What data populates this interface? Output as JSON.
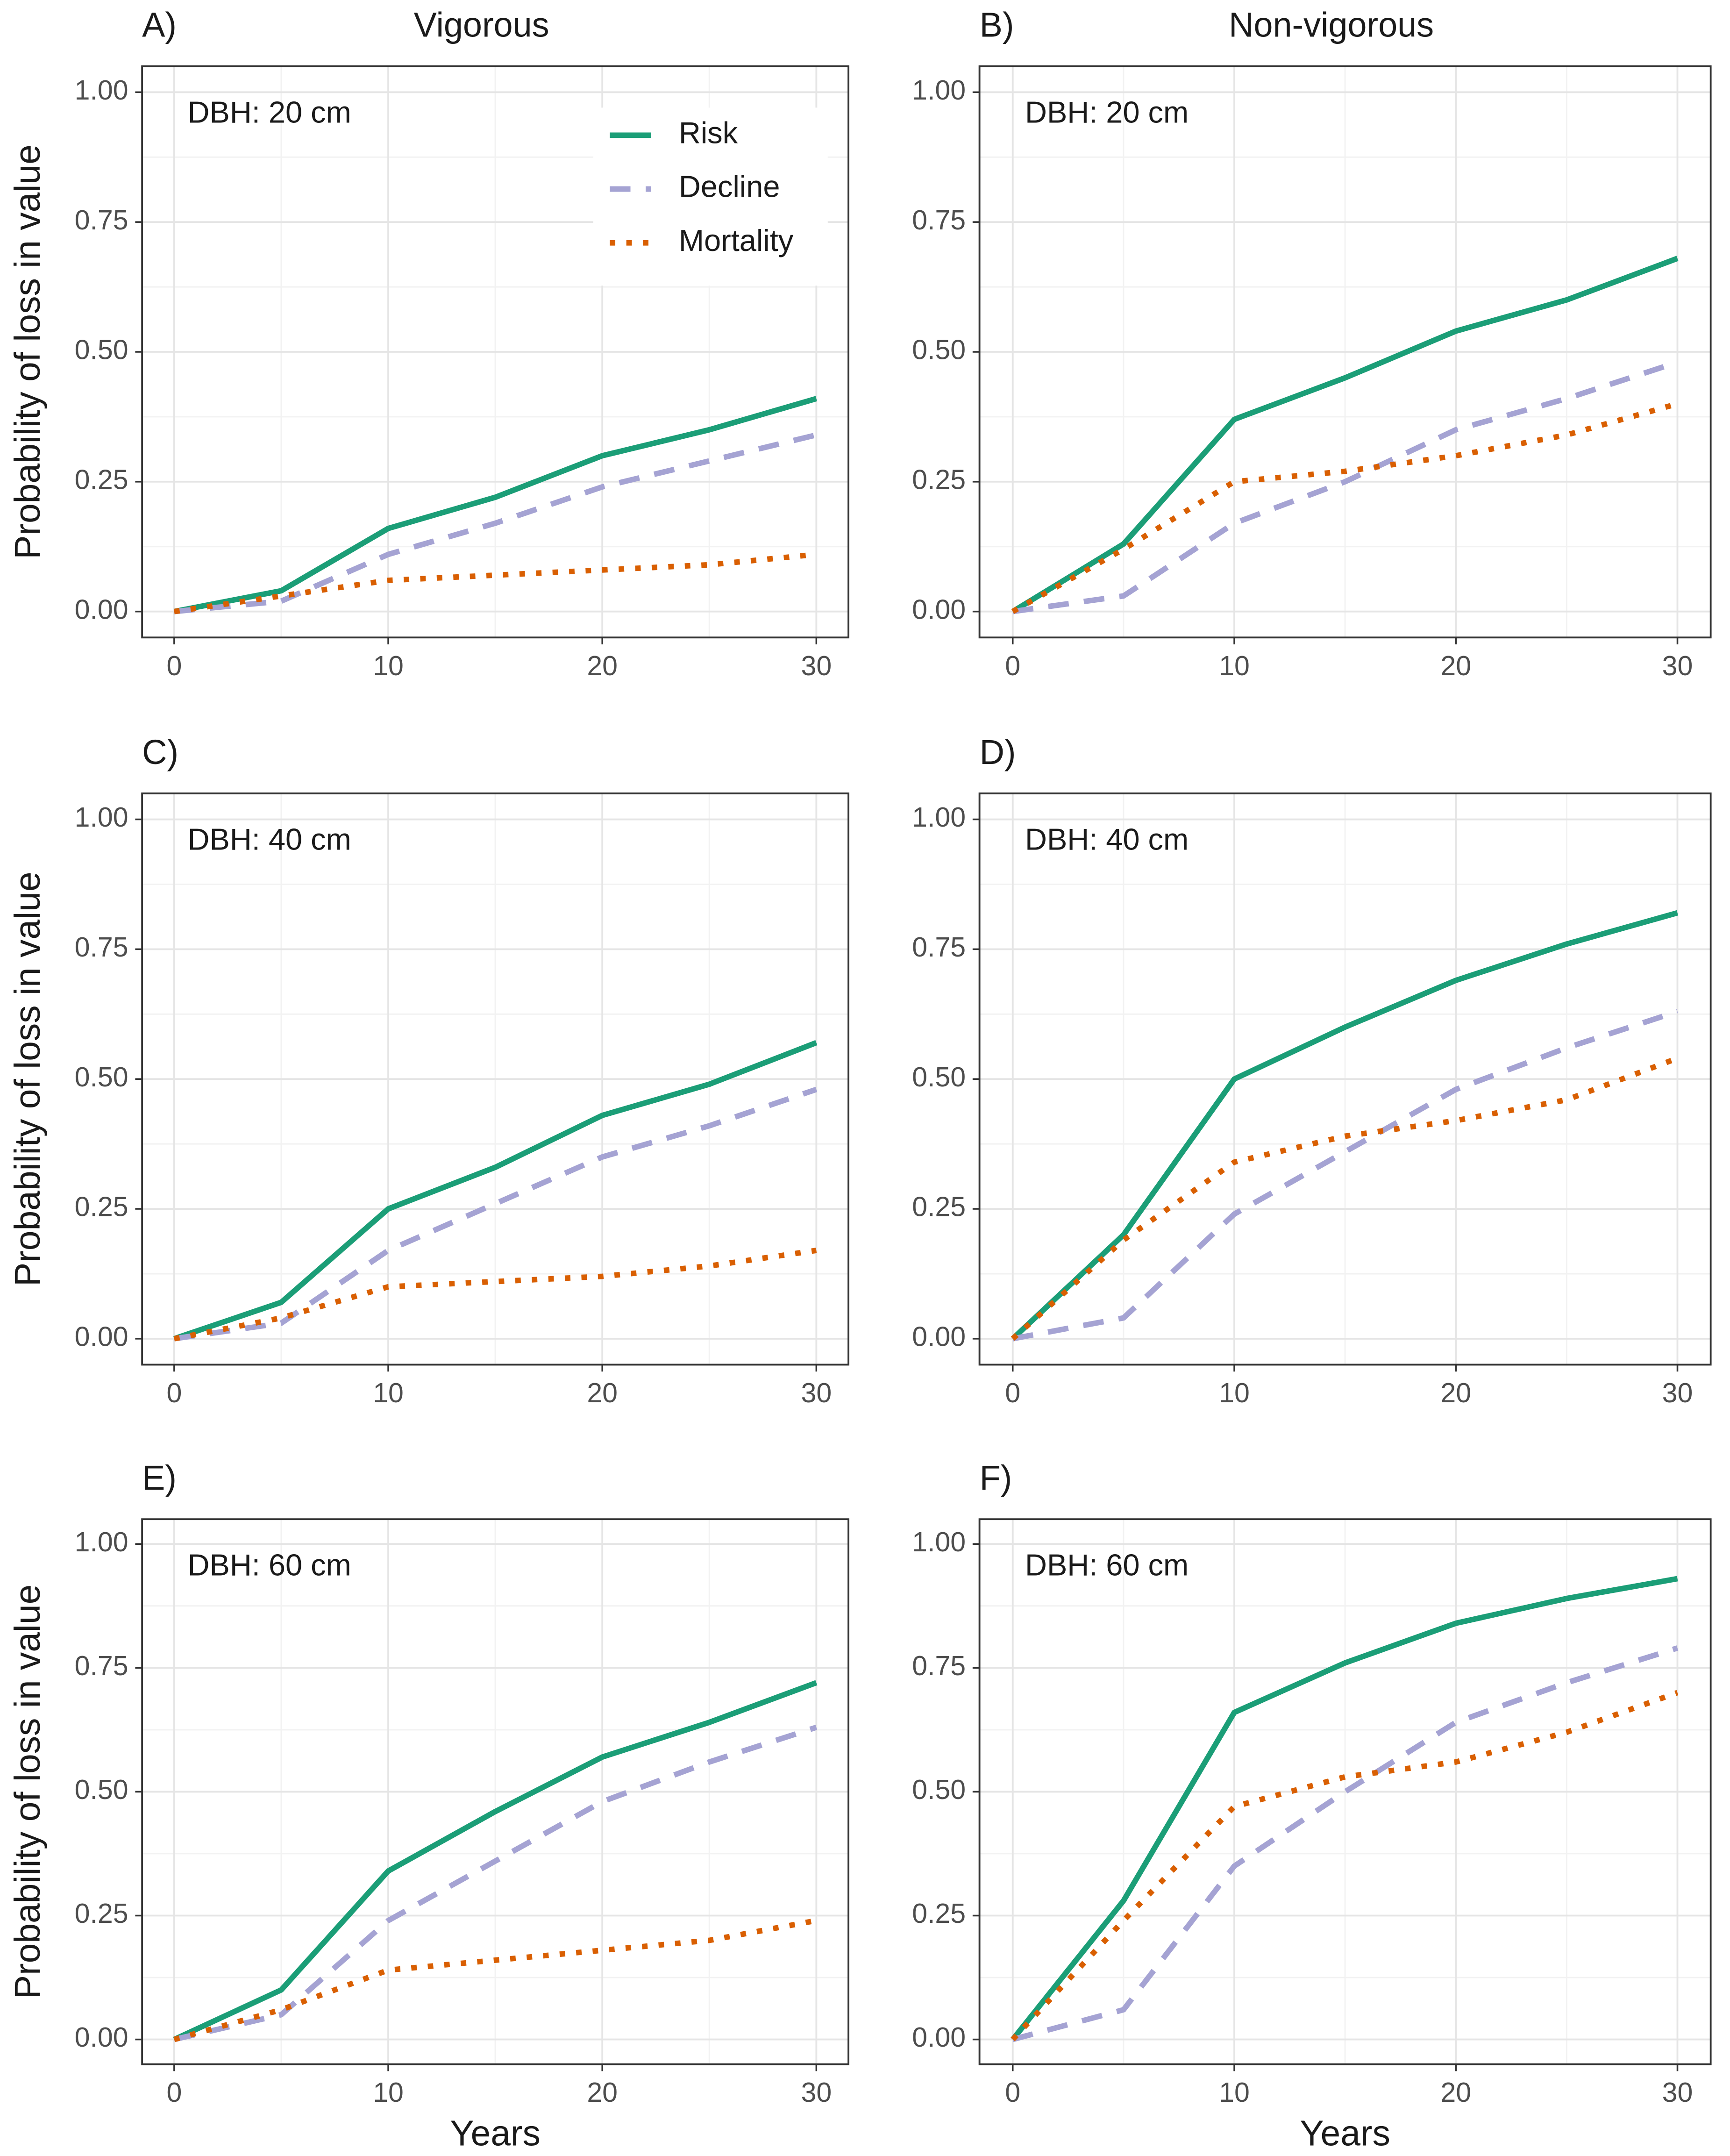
{
  "chart_data": [
    {
      "type": "line",
      "panel_label": "A)",
      "title": "Vigorous",
      "annotation": "DBH: 20 cm",
      "ylabel": "Probability of loss in value",
      "legend": "top-right",
      "x": [
        0,
        5,
        10,
        15,
        20,
        25,
        30
      ],
      "series": [
        {
          "name": "Risk",
          "color": "#1b9e77",
          "style": "solid",
          "values": [
            0,
            0.04,
            0.16,
            0.22,
            0.3,
            0.35,
            0.41
          ]
        },
        {
          "name": "Decline",
          "color": "#a5a3d3",
          "style": "dashed",
          "values": [
            0,
            0.02,
            0.11,
            0.17,
            0.24,
            0.29,
            0.34
          ]
        },
        {
          "name": "Mortality",
          "color": "#d95f02",
          "style": "dotted",
          "values": [
            0,
            0.03,
            0.06,
            0.07,
            0.08,
            0.09,
            0.11
          ]
        }
      ],
      "xlim": [
        -1.5,
        31.5
      ],
      "ylim": [
        -0.05,
        1.05
      ],
      "xticks": [
        0,
        10,
        20,
        30
      ],
      "xminor": [
        5,
        15,
        25
      ],
      "yticks": [
        {
          "value": 0,
          "label": "0.00"
        },
        {
          "value": 0.25,
          "label": "0.25"
        },
        {
          "value": 0.5,
          "label": "0.50"
        },
        {
          "value": 0.75,
          "label": "0.75"
        },
        {
          "value": 1,
          "label": "1.00"
        }
      ],
      "yminor": [
        0.125,
        0.375,
        0.625,
        0.875
      ],
      "grid": true
    },
    {
      "type": "line",
      "panel_label": "B)",
      "title": "Non-vigorous",
      "annotation": "DBH: 20 cm",
      "x": [
        0,
        5,
        10,
        15,
        20,
        25,
        30
      ],
      "series": [
        {
          "color": "#1b9e77",
          "style": "solid",
          "values": [
            0,
            0.13,
            0.37,
            0.45,
            0.54,
            0.6,
            0.68
          ]
        },
        {
          "color": "#a5a3d3",
          "style": "dashed",
          "values": [
            0,
            0.03,
            0.17,
            0.25,
            0.35,
            0.41,
            0.48
          ]
        },
        {
          "color": "#d95f02",
          "style": "dotted",
          "values": [
            0,
            0.12,
            0.25,
            0.27,
            0.3,
            0.34,
            0.4
          ]
        }
      ],
      "xlim": [
        -1.5,
        31.5
      ],
      "ylim": [
        -0.05,
        1.05
      ],
      "xticks": [
        0,
        10,
        20,
        30
      ],
      "xminor": [
        5,
        15,
        25
      ],
      "yticks": [
        {
          "value": 0,
          "label": "0.00"
        },
        {
          "value": 0.25,
          "label": "0.25"
        },
        {
          "value": 0.5,
          "label": "0.50"
        },
        {
          "value": 0.75,
          "label": "0.75"
        },
        {
          "value": 1,
          "label": "1.00"
        }
      ],
      "yminor": [
        0.125,
        0.375,
        0.625,
        0.875
      ],
      "grid": true
    },
    {
      "type": "line",
      "panel_label": "C)",
      "annotation": "DBH: 40 cm",
      "ylabel": "Probability of loss in value",
      "x": [
        0,
        5,
        10,
        15,
        20,
        25,
        30
      ],
      "series": [
        {
          "color": "#1b9e77",
          "style": "solid",
          "values": [
            0,
            0.07,
            0.25,
            0.33,
            0.43,
            0.49,
            0.57
          ]
        },
        {
          "color": "#a5a3d3",
          "style": "dashed",
          "values": [
            0,
            0.03,
            0.17,
            0.26,
            0.35,
            0.41,
            0.48
          ]
        },
        {
          "color": "#d95f02",
          "style": "dotted",
          "values": [
            0,
            0.04,
            0.1,
            0.11,
            0.12,
            0.14,
            0.17
          ]
        }
      ],
      "xlim": [
        -1.5,
        31.5
      ],
      "ylim": [
        -0.05,
        1.05
      ],
      "xticks": [
        0,
        10,
        20,
        30
      ],
      "xminor": [
        5,
        15,
        25
      ],
      "yticks": [
        {
          "value": 0,
          "label": "0.00"
        },
        {
          "value": 0.25,
          "label": "0.25"
        },
        {
          "value": 0.5,
          "label": "0.50"
        },
        {
          "value": 0.75,
          "label": "0.75"
        },
        {
          "value": 1,
          "label": "1.00"
        }
      ],
      "yminor": [
        0.125,
        0.375,
        0.625,
        0.875
      ],
      "grid": true
    },
    {
      "type": "line",
      "panel_label": "D)",
      "annotation": "DBH: 40 cm",
      "x": [
        0,
        5,
        10,
        15,
        20,
        25,
        30
      ],
      "series": [
        {
          "color": "#1b9e77",
          "style": "solid",
          "values": [
            0,
            0.2,
            0.5,
            0.6,
            0.69,
            0.76,
            0.82
          ]
        },
        {
          "color": "#a5a3d3",
          "style": "dashed",
          "values": [
            0,
            0.04,
            0.24,
            0.36,
            0.48,
            0.56,
            0.63
          ]
        },
        {
          "color": "#d95f02",
          "style": "dotted",
          "values": [
            0,
            0.19,
            0.34,
            0.39,
            0.42,
            0.46,
            0.54
          ]
        }
      ],
      "xlim": [
        -1.5,
        31.5
      ],
      "ylim": [
        -0.05,
        1.05
      ],
      "xticks": [
        0,
        10,
        20,
        30
      ],
      "xminor": [
        5,
        15,
        25
      ],
      "yticks": [
        {
          "value": 0,
          "label": "0.00"
        },
        {
          "value": 0.25,
          "label": "0.25"
        },
        {
          "value": 0.5,
          "label": "0.50"
        },
        {
          "value": 0.75,
          "label": "0.75"
        },
        {
          "value": 1,
          "label": "1.00"
        }
      ],
      "yminor": [
        0.125,
        0.375,
        0.625,
        0.875
      ],
      "grid": true
    },
    {
      "type": "line",
      "panel_label": "E)",
      "annotation": "DBH: 60 cm",
      "ylabel": "Probability of loss in value",
      "xlabel": "Years",
      "x": [
        0,
        5,
        10,
        15,
        20,
        25,
        30
      ],
      "series": [
        {
          "color": "#1b9e77",
          "style": "solid",
          "values": [
            0,
            0.1,
            0.34,
            0.46,
            0.57,
            0.64,
            0.72
          ]
        },
        {
          "color": "#a5a3d3",
          "style": "dashed",
          "values": [
            0,
            0.05,
            0.24,
            0.36,
            0.48,
            0.56,
            0.63
          ]
        },
        {
          "color": "#d95f02",
          "style": "dotted",
          "values": [
            0,
            0.06,
            0.14,
            0.16,
            0.18,
            0.2,
            0.24
          ]
        }
      ],
      "xlim": [
        -1.5,
        31.5
      ],
      "ylim": [
        -0.05,
        1.05
      ],
      "xticks": [
        0,
        10,
        20,
        30
      ],
      "xminor": [
        5,
        15,
        25
      ],
      "yticks": [
        {
          "value": 0,
          "label": "0.00"
        },
        {
          "value": 0.25,
          "label": "0.25"
        },
        {
          "value": 0.5,
          "label": "0.50"
        },
        {
          "value": 0.75,
          "label": "0.75"
        },
        {
          "value": 1,
          "label": "1.00"
        }
      ],
      "yminor": [
        0.125,
        0.375,
        0.625,
        0.875
      ],
      "grid": true
    },
    {
      "type": "line",
      "panel_label": "F)",
      "annotation": "DBH: 60 cm",
      "xlabel": "Years",
      "x": [
        0,
        5,
        10,
        15,
        20,
        25,
        30
      ],
      "series": [
        {
          "color": "#1b9e77",
          "style": "solid",
          "values": [
            0,
            0.28,
            0.66,
            0.76,
            0.84,
            0.89,
            0.93
          ]
        },
        {
          "color": "#a5a3d3",
          "style": "dashed",
          "values": [
            0,
            0.06,
            0.35,
            0.5,
            0.64,
            0.72,
            0.79
          ]
        },
        {
          "color": "#d95f02",
          "style": "dotted",
          "values": [
            0,
            0.24,
            0.47,
            0.53,
            0.56,
            0.62,
            0.7
          ]
        }
      ],
      "xlim": [
        -1.5,
        31.5
      ],
      "ylim": [
        -0.05,
        1.05
      ],
      "xticks": [
        0,
        10,
        20,
        30
      ],
      "xminor": [
        5,
        15,
        25
      ],
      "yticks": [
        {
          "value": 0,
          "label": "0.00"
        },
        {
          "value": 0.25,
          "label": "0.25"
        },
        {
          "value": 0.5,
          "label": "0.50"
        },
        {
          "value": 0.75,
          "label": "0.75"
        },
        {
          "value": 1,
          "label": "1.00"
        }
      ],
      "yminor": [
        0.125,
        0.375,
        0.625,
        0.875
      ],
      "grid": true
    }
  ]
}
